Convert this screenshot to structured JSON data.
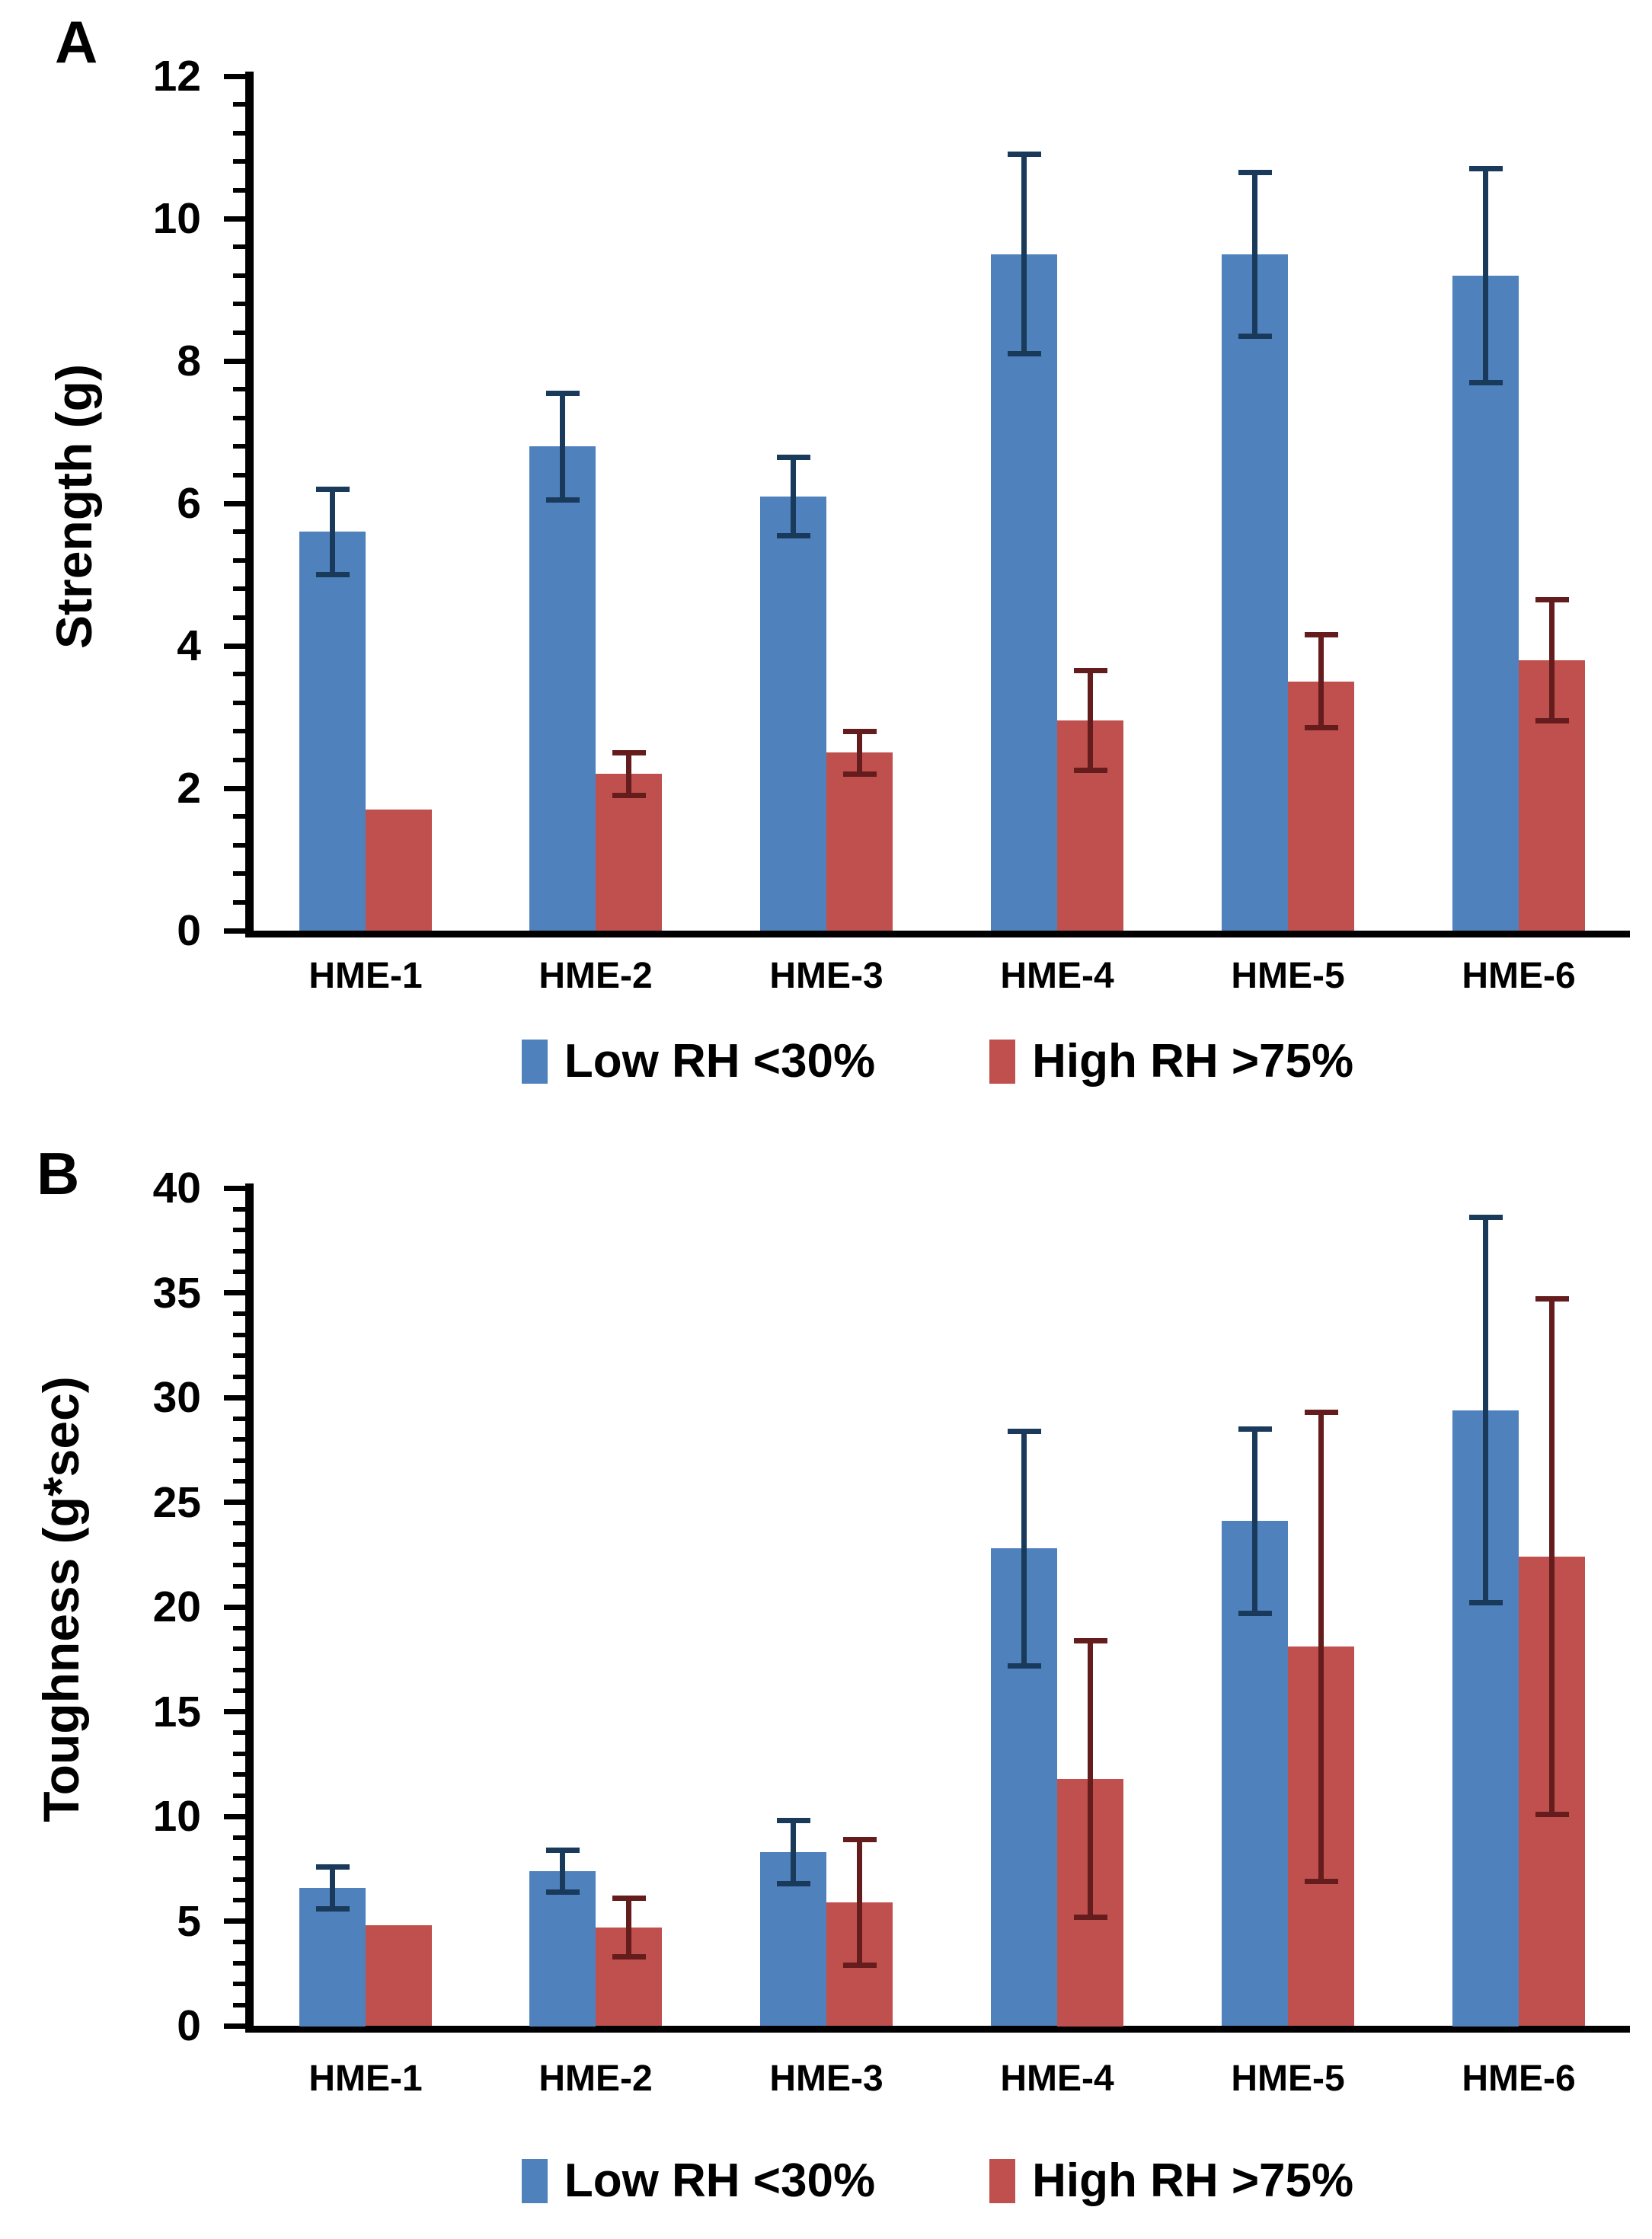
{
  "figure": {
    "background": "#ffffff",
    "panels": [
      "A",
      "B"
    ]
  },
  "colors": {
    "series_blue": "#4F81BD",
    "series_red": "#C0504D",
    "error_blue": "#1A3A5C",
    "error_red": "#641C1C",
    "axis": "#000000",
    "text": "#000000"
  },
  "chart_data": [
    {
      "type": "bar",
      "panel_label": "A",
      "ylabel": "Strength (g)",
      "xlabel": "",
      "categories": [
        "HME-1",
        "HME-2",
        "HME-3",
        "HME-4",
        "HME-5",
        "HME-6"
      ],
      "series": [
        {
          "name": "Low RH <30%",
          "color": "#4F81BD",
          "error_color": "#1A3A5C",
          "values": [
            5.6,
            6.8,
            6.1,
            9.5,
            9.5,
            9.2
          ],
          "errors": [
            0.6,
            0.75,
            0.55,
            1.4,
            1.15,
            1.5
          ]
        },
        {
          "name": "High RH >75%",
          "color": "#C0504D",
          "error_color": "#641C1C",
          "values": [
            1.7,
            2.2,
            2.5,
            2.95,
            3.5,
            3.8
          ],
          "errors": [
            0,
            0.3,
            0.3,
            0.7,
            0.65,
            0.85
          ]
        }
      ],
      "ylim": [
        0,
        12
      ],
      "yticks": [
        0,
        2,
        4,
        6,
        8,
        10,
        12
      ],
      "ytick_labels": [
        "0",
        "2",
        "4",
        "6",
        "8",
        "10",
        "12"
      ],
      "minor_tick_step": 0.4,
      "grid": false,
      "legend_position": "bottom"
    },
    {
      "type": "bar",
      "panel_label": "B",
      "ylabel": "Toughness (g*sec)",
      "xlabel": "",
      "categories": [
        "HME-1",
        "HME-2",
        "HME-3",
        "HME-4",
        "HME-5",
        "HME-6"
      ],
      "series": [
        {
          "name": "Low RH <30%",
          "color": "#4F81BD",
          "error_color": "#1A3A5C",
          "values": [
            6.6,
            7.4,
            8.3,
            22.8,
            24.1,
            29.4
          ],
          "errors": [
            1.0,
            1.0,
            1.5,
            5.6,
            4.4,
            9.2
          ]
        },
        {
          "name": "High RH >75%",
          "color": "#C0504D",
          "error_color": "#641C1C",
          "values": [
            4.8,
            4.7,
            5.9,
            11.8,
            18.1,
            22.4
          ],
          "errors": [
            0,
            1.4,
            3.0,
            6.6,
            11.2,
            12.3
          ]
        }
      ],
      "ylim": [
        0,
        40
      ],
      "yticks": [
        0,
        5,
        10,
        15,
        20,
        25,
        30,
        35,
        40
      ],
      "ytick_labels": [
        "0",
        "5",
        "10",
        "15",
        "20",
        "25",
        "30",
        "35",
        "40"
      ],
      "minor_tick_step": 1,
      "grid": false,
      "legend_position": "bottom"
    }
  ]
}
